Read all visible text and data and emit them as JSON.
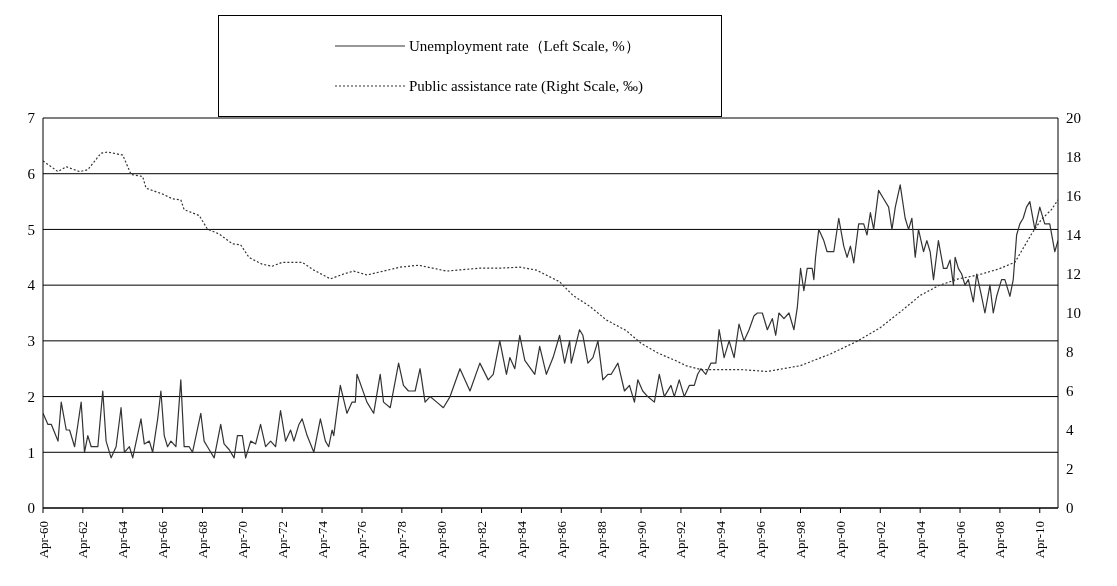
{
  "chart_data": {
    "type": "line",
    "legend": "top",
    "grid": "y",
    "marker": "none",
    "xlim": [
      "1960-04",
      "2011-03"
    ],
    "xticks": [
      {
        "value": "1960-04",
        "label": "Apr-60"
      },
      {
        "value": "1962-04",
        "label": "Apr-62"
      },
      {
        "value": "1964-04",
        "label": "Apr-64"
      },
      {
        "value": "1966-04",
        "label": "Apr-66"
      },
      {
        "value": "1968-04",
        "label": "Apr-68"
      },
      {
        "value": "1970-04",
        "label": "Apr-70"
      },
      {
        "value": "1972-04",
        "label": "Apr-72"
      },
      {
        "value": "1974-04",
        "label": "Apr-74"
      },
      {
        "value": "1976-04",
        "label": "Apr-76"
      },
      {
        "value": "1978-04",
        "label": "Apr-78"
      },
      {
        "value": "1980-04",
        "label": "Apr-80"
      },
      {
        "value": "1982-04",
        "label": "Apr-82"
      },
      {
        "value": "1984-04",
        "label": "Apr-84"
      },
      {
        "value": "1986-04",
        "label": "Apr-86"
      },
      {
        "value": "1988-04",
        "label": "Apr-88"
      },
      {
        "value": "1990-04",
        "label": "Apr-90"
      },
      {
        "value": "1992-04",
        "label": "Apr-92"
      },
      {
        "value": "1994-04",
        "label": "Apr-94"
      },
      {
        "value": "1996-04",
        "label": "Apr-96"
      },
      {
        "value": "1998-04",
        "label": "Apr-98"
      },
      {
        "value": "2000-04",
        "label": "Apr-00"
      },
      {
        "value": "2002-04",
        "label": "Apr-02"
      },
      {
        "value": "2004-04",
        "label": "Apr-04"
      },
      {
        "value": "2006-04",
        "label": "Apr-06"
      },
      {
        "value": "2008-04",
        "label": "Apr-08"
      },
      {
        "value": "2010-04",
        "label": "Apr-10"
      }
    ],
    "ylim": [
      0,
      7
    ],
    "yticks": [
      0,
      1,
      2,
      3,
      4,
      5,
      6,
      7
    ],
    "y2lim": [
      0,
      20
    ],
    "y2ticks": [
      0,
      2,
      4,
      6,
      8,
      10,
      12,
      14,
      16,
      18,
      20
    ],
    "series": [
      {
        "name": "Unemployment rate（Left Scale, %）",
        "color": "#333333",
        "line_style": "solid",
        "x": [
          "1960-04",
          "1960-07",
          "1960-09",
          "1960-11",
          "1961-01",
          "1961-03",
          "1961-06",
          "1961-08",
          "1961-11",
          "1962-03",
          "1962-05",
          "1962-07",
          "1962-09",
          "1963-01",
          "1963-04",
          "1963-06",
          "1963-09",
          "1963-12",
          "1964-03",
          "1964-05",
          "1964-08",
          "1964-10",
          "1965-03",
          "1965-05",
          "1965-08",
          "1965-10",
          "1966-01",
          "1966-03",
          "1966-05",
          "1966-07",
          "1966-09",
          "1966-12",
          "1967-01",
          "1967-03",
          "1967-05",
          "1967-08",
          "1967-10",
          "1968-03",
          "1968-05",
          "1968-07",
          "1968-11",
          "1969-03",
          "1969-05",
          "1969-08",
          "1969-11",
          "1970-01",
          "1970-04",
          "1970-06",
          "1970-09",
          "1970-12",
          "1971-03",
          "1971-06",
          "1971-09",
          "1971-12",
          "1972-03",
          "1972-06",
          "1972-09",
          "1972-11",
          "1973-02",
          "1973-04",
          "1973-07",
          "1973-11",
          "1974-03",
          "1974-06",
          "1974-08",
          "1974-10",
          "1974-11",
          "1975-03",
          "1975-07",
          "1975-10",
          "1975-12",
          "1976-01",
          "1976-07",
          "1976-11",
          "1977-03",
          "1977-05",
          "1977-09",
          "1978-02",
          "1978-05",
          "1978-08",
          "1978-12",
          "1979-03",
          "1979-06",
          "1979-09",
          "1980-01",
          "1980-05",
          "1980-09",
          "1981-03",
          "1981-09",
          "1982-03",
          "1982-08",
          "1982-11",
          "1983-03",
          "1983-07",
          "1983-09",
          "1983-12",
          "1984-03",
          "1984-06",
          "1984-12",
          "1985-03",
          "1985-07",
          "1985-11",
          "1986-03",
          "1986-06",
          "1986-09",
          "1986-10",
          "1987-03",
          "1987-05",
          "1987-08",
          "1987-11",
          "1988-02",
          "1988-05",
          "1988-08",
          "1988-10",
          "1989-02",
          "1989-06",
          "1989-09",
          "1989-12",
          "1990-02",
          "1990-05",
          "1990-08",
          "1990-12",
          "1991-03",
          "1991-06",
          "1991-10",
          "1991-12",
          "1992-03",
          "1992-06",
          "1992-09",
          "1992-12",
          "1993-02",
          "1993-04",
          "1993-07",
          "1993-10",
          "1994-01",
          "1994-03",
          "1994-06",
          "1994-09",
          "1994-12",
          "1995-03",
          "1995-06",
          "1995-09",
          "1995-12",
          "1996-02",
          "1996-05",
          "1996-08",
          "1996-11",
          "1997-01",
          "1997-03",
          "1997-06",
          "1997-09",
          "1997-12",
          "1998-02",
          "1998-04",
          "1998-06",
          "1998-08",
          "1998-11",
          "1998-12",
          "1999-01",
          "1999-03",
          "1999-06",
          "1999-08",
          "1999-12",
          "2000-03",
          "2000-06",
          "2000-08",
          "2000-10",
          "2000-12",
          "2001-03",
          "2001-06",
          "2001-08",
          "2001-10",
          "2001-12",
          "2002-03",
          "2002-06",
          "2002-09",
          "2002-11",
          "2003-01",
          "2003-04",
          "2003-07",
          "2003-09",
          "2003-11",
          "2004-01",
          "2004-03",
          "2004-06",
          "2004-08",
          "2004-10",
          "2004-12",
          "2005-03",
          "2005-06",
          "2005-08",
          "2005-10",
          "2005-12",
          "2006-01",
          "2006-03",
          "2006-05",
          "2006-07",
          "2006-09",
          "2006-12",
          "2007-02",
          "2007-05",
          "2007-07",
          "2007-10",
          "2007-12",
          "2008-02",
          "2008-05",
          "2008-07",
          "2008-10",
          "2008-12",
          "2009-02",
          "2009-04",
          "2009-06",
          "2009-08",
          "2009-10",
          "2010-01",
          "2010-04",
          "2010-07",
          "2010-10",
          "2011-01",
          "2011-03"
        ],
        "values": [
          1.7,
          1.5,
          1.5,
          1.35,
          1.2,
          1.9,
          1.4,
          1.4,
          1.1,
          1.9,
          1.0,
          1.3,
          1.1,
          1.1,
          2.1,
          1.2,
          0.9,
          1.1,
          1.8,
          1.0,
          1.1,
          0.9,
          1.6,
          1.15,
          1.2,
          1.0,
          1.6,
          2.1,
          1.3,
          1.1,
          1.2,
          1.1,
          1.5,
          2.3,
          1.1,
          1.1,
          1.0,
          1.7,
          1.2,
          1.1,
          0.9,
          1.5,
          1.15,
          1.05,
          0.9,
          1.3,
          1.3,
          0.9,
          1.2,
          1.15,
          1.5,
          1.1,
          1.2,
          1.1,
          1.75,
          1.2,
          1.4,
          1.2,
          1.5,
          1.6,
          1.3,
          1.0,
          1.6,
          1.2,
          1.1,
          1.4,
          1.3,
          2.2,
          1.7,
          1.9,
          1.9,
          2.4,
          1.9,
          1.7,
          2.4,
          1.9,
          1.8,
          2.6,
          2.2,
          2.1,
          2.1,
          2.5,
          1.9,
          2.0,
          1.9,
          1.8,
          2.0,
          2.5,
          2.1,
          2.6,
          2.3,
          2.4,
          3.0,
          2.4,
          2.7,
          2.5,
          3.1,
          2.65,
          2.4,
          2.9,
          2.4,
          2.7,
          3.1,
          2.6,
          3.0,
          2.6,
          3.2,
          3.1,
          2.6,
          2.7,
          3.0,
          2.3,
          2.4,
          2.4,
          2.6,
          2.1,
          2.2,
          1.9,
          2.3,
          2.1,
          2.0,
          1.9,
          2.4,
          2.0,
          2.2,
          2.0,
          2.3,
          2.0,
          2.2,
          2.2,
          2.4,
          2.5,
          2.4,
          2.6,
          2.6,
          3.2,
          2.7,
          3.0,
          2.7,
          3.3,
          3.0,
          3.2,
          3.45,
          3.5,
          3.5,
          3.2,
          3.4,
          3.1,
          3.5,
          3.4,
          3.5,
          3.2,
          3.6,
          4.3,
          3.9,
          4.3,
          4.3,
          4.1,
          4.5,
          5.0,
          4.8,
          4.6,
          4.6,
          5.2,
          4.7,
          4.5,
          4.7,
          4.4,
          5.1,
          5.1,
          4.9,
          5.3,
          5.0,
          5.7,
          5.55,
          5.4,
          5.0,
          5.4,
          5.8,
          5.2,
          5.0,
          5.2,
          4.5,
          5.0,
          4.6,
          4.8,
          4.6,
          4.1,
          4.8,
          4.3,
          4.3,
          4.45,
          4.0,
          4.5,
          4.3,
          4.2,
          4.0,
          4.1,
          3.7,
          4.2,
          3.8,
          3.5,
          4.0,
          3.5,
          3.8,
          4.1,
          4.1,
          3.8,
          4.1,
          4.9,
          5.1,
          5.2,
          5.4,
          5.5,
          5.0,
          5.4,
          5.1,
          5.1,
          4.6,
          4.8
        ]
      },
      {
        "name": "Public assistance rate (Right Scale, ‰)",
        "color": "#333333",
        "line_style": "dotted",
        "axis": "y2",
        "x": [
          "1960-04",
          "1961-01",
          "1961-06",
          "1962-02",
          "1962-07",
          "1963-03",
          "1963-07",
          "1964-04",
          "1964-09",
          "1965-04",
          "1965-06",
          "1966-04",
          "1966-10",
          "1967-03",
          "1967-05",
          "1968-02",
          "1968-07",
          "1969-02",
          "1969-10",
          "1970-03",
          "1970-08",
          "1971-04",
          "1971-10",
          "1972-04",
          "1973-04",
          "1973-11",
          "1974-09",
          "1975-05",
          "1975-11",
          "1976-07",
          "1978-03",
          "1979-02",
          "1980-07",
          "1982-03",
          "1983-03",
          "1984-03",
          "1985-01",
          "1986-03",
          "1986-11",
          "1987-09",
          "1988-07",
          "1989-07",
          "1990-04",
          "1991-02",
          "1992-01",
          "1992-07",
          "1993-04",
          "1995-04",
          "1996-08",
          "1998-04",
          "1999-10",
          "2001-02",
          "2002-04",
          "2003-04",
          "2004-04",
          "2005-03",
          "2006-03",
          "2007-03",
          "2008-03",
          "2009-01",
          "2009-11",
          "2010-05",
          "2010-11",
          "2011-03"
        ],
        "values": [
          17.8,
          17.25,
          17.5,
          17.25,
          17.35,
          18.2,
          18.25,
          18.1,
          17.1,
          17.0,
          16.4,
          16.1,
          15.85,
          15.8,
          15.3,
          15.0,
          14.3,
          14.05,
          13.55,
          13.5,
          12.85,
          12.5,
          12.4,
          12.6,
          12.6,
          12.2,
          11.75,
          12.0,
          12.15,
          11.95,
          12.35,
          12.45,
          12.15,
          12.3,
          12.3,
          12.35,
          12.2,
          11.6,
          10.9,
          10.35,
          9.65,
          9.1,
          8.45,
          7.95,
          7.55,
          7.3,
          7.1,
          7.1,
          7.0,
          7.3,
          7.9,
          8.55,
          9.25,
          10.05,
          10.9,
          11.4,
          11.75,
          11.95,
          12.25,
          12.6,
          14.05,
          14.8,
          15.3,
          15.8
        ]
      }
    ]
  }
}
